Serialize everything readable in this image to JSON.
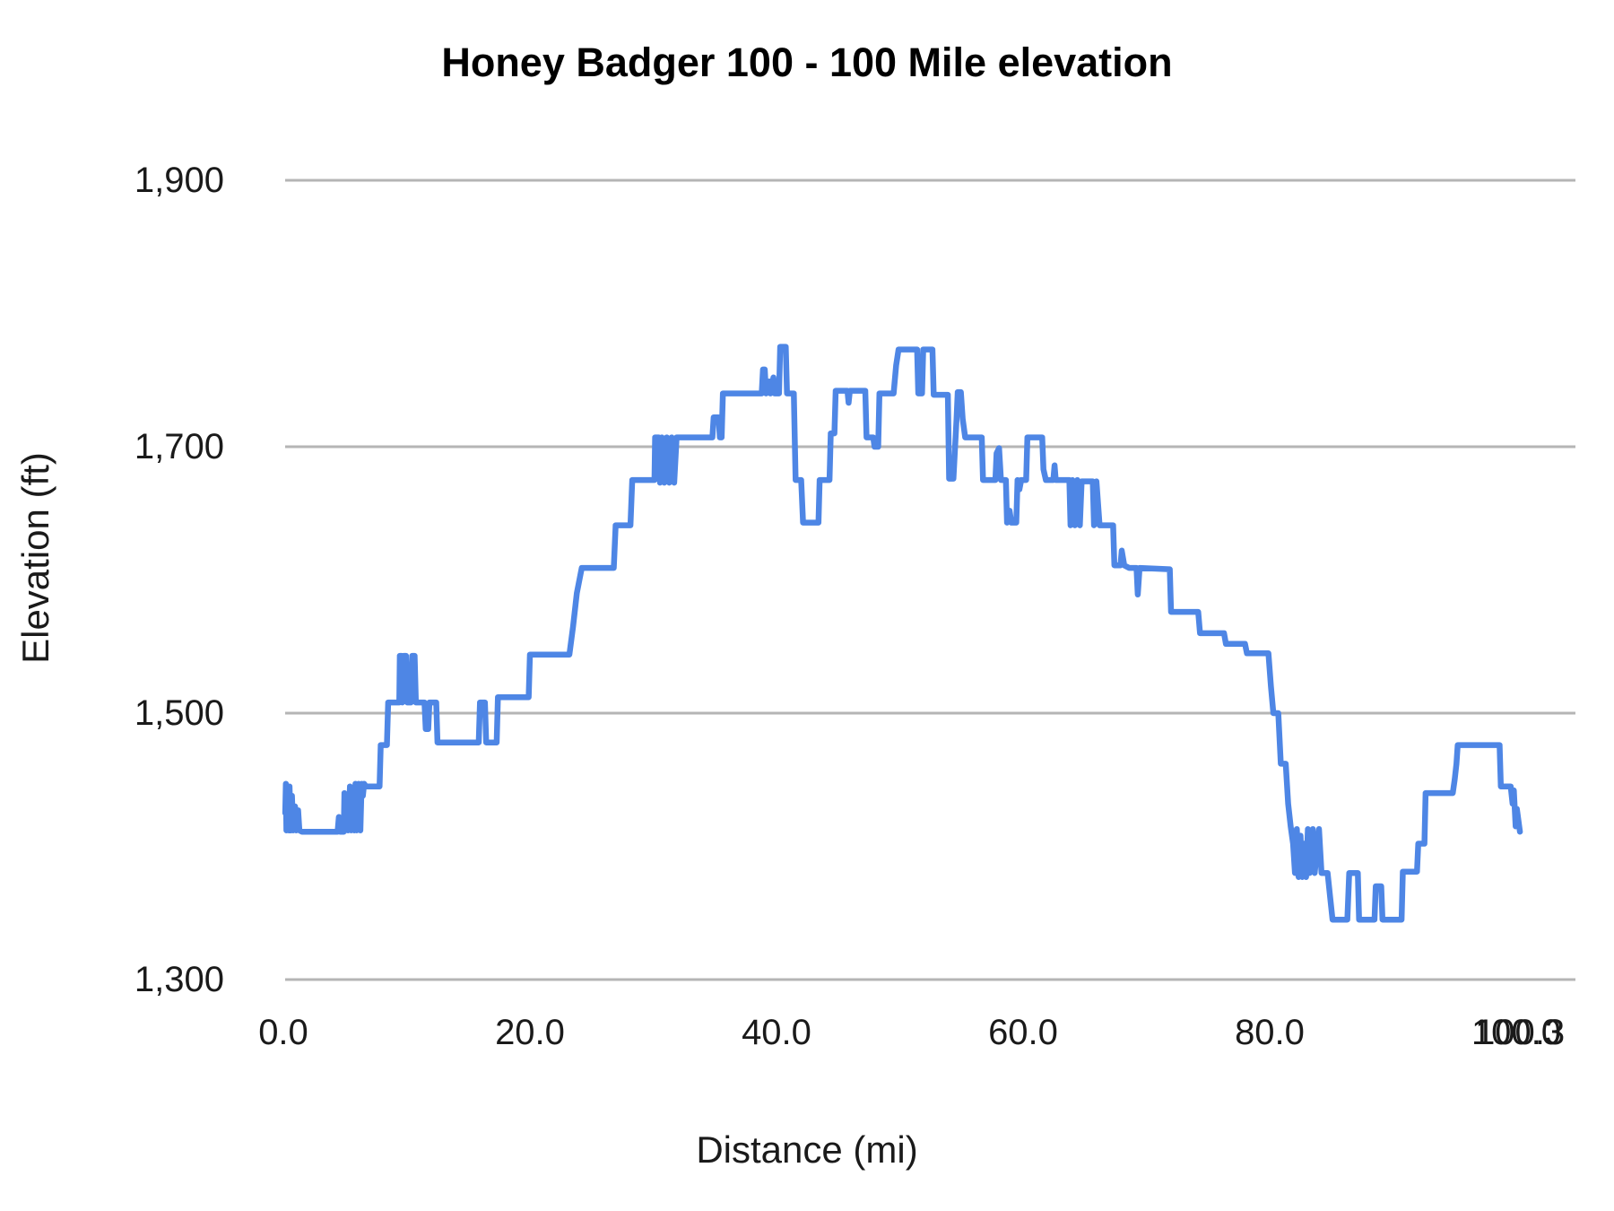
{
  "chart_data": {
    "type": "line",
    "title": "Honey Badger 100 - 100 Mile elevation",
    "xlabel": "Distance (mi)",
    "ylabel": "Elevation (ft)",
    "x_range": [
      0,
      100.3
    ],
    "y_range": [
      1300,
      1900
    ],
    "grid": "horizontal",
    "legend_position": "none",
    "x_ticks": [
      {
        "value": 0,
        "label": "0.0"
      },
      {
        "value": 20,
        "label": "20.0"
      },
      {
        "value": 40,
        "label": "40.0"
      },
      {
        "value": 60,
        "label": "60.0"
      },
      {
        "value": 80,
        "label": "80.0"
      },
      {
        "value": 100,
        "label": "100.0"
      },
      {
        "value": 100.3,
        "label": "100.3"
      }
    ],
    "y_ticks": [
      {
        "value": 1300,
        "label": "1,300"
      },
      {
        "value": 1500,
        "label": "1,500"
      },
      {
        "value": 1700,
        "label": "1,700"
      },
      {
        "value": 1900,
        "label": "1,900"
      }
    ],
    "series": [
      {
        "name": "Elevation",
        "color": "#4e86e5",
        "points": [
          [
            0.15,
            1425
          ],
          [
            0.2,
            1447
          ],
          [
            0.25,
            1412
          ],
          [
            0.35,
            1440
          ],
          [
            0.45,
            1412
          ],
          [
            0.5,
            1445
          ],
          [
            0.6,
            1412
          ],
          [
            0.7,
            1438
          ],
          [
            0.8,
            1412
          ],
          [
            0.95,
            1430
          ],
          [
            1.05,
            1412
          ],
          [
            1.2,
            1427
          ],
          [
            1.3,
            1412
          ],
          [
            1.5,
            1411
          ],
          [
            2.5,
            1411
          ],
          [
            3.5,
            1411
          ],
          [
            4.4,
            1411
          ],
          [
            4.5,
            1422
          ],
          [
            4.6,
            1411
          ],
          [
            4.9,
            1411
          ],
          [
            4.95,
            1440
          ],
          [
            5.05,
            1412
          ],
          [
            5.15,
            1435
          ],
          [
            5.25,
            1412
          ],
          [
            5.4,
            1445
          ],
          [
            5.5,
            1412
          ],
          [
            5.65,
            1440
          ],
          [
            5.75,
            1412
          ],
          [
            5.85,
            1447
          ],
          [
            5.95,
            1412
          ],
          [
            6.1,
            1447
          ],
          [
            6.25,
            1412
          ],
          [
            6.35,
            1447
          ],
          [
            6.45,
            1438
          ],
          [
            6.55,
            1447
          ],
          [
            6.7,
            1445
          ],
          [
            7.8,
            1445
          ],
          [
            7.9,
            1476
          ],
          [
            8.4,
            1476
          ],
          [
            8.5,
            1508
          ],
          [
            9.4,
            1508
          ],
          [
            9.45,
            1543
          ],
          [
            9.6,
            1543
          ],
          [
            9.65,
            1508
          ],
          [
            9.75,
            1543
          ],
          [
            9.95,
            1543
          ],
          [
            10.05,
            1508
          ],
          [
            10.35,
            1508
          ],
          [
            10.45,
            1543
          ],
          [
            10.65,
            1543
          ],
          [
            10.75,
            1508
          ],
          [
            11.45,
            1508
          ],
          [
            11.55,
            1488
          ],
          [
            11.75,
            1488
          ],
          [
            11.85,
            1508
          ],
          [
            12.4,
            1508
          ],
          [
            12.5,
            1478
          ],
          [
            15.85,
            1478
          ],
          [
            15.95,
            1508
          ],
          [
            16.35,
            1508
          ],
          [
            16.45,
            1478
          ],
          [
            17.3,
            1478
          ],
          [
            17.4,
            1512
          ],
          [
            19.9,
            1512
          ],
          [
            20.0,
            1544
          ],
          [
            23.2,
            1544
          ],
          [
            23.5,
            1565
          ],
          [
            23.8,
            1590
          ],
          [
            24.2,
            1609
          ],
          [
            26.8,
            1609
          ],
          [
            26.95,
            1641
          ],
          [
            28.15,
            1641
          ],
          [
            28.3,
            1675
          ],
          [
            30.1,
            1675
          ],
          [
            30.15,
            1707
          ],
          [
            30.45,
            1707
          ],
          [
            30.55,
            1673
          ],
          [
            30.7,
            1707
          ],
          [
            30.9,
            1673
          ],
          [
            31.1,
            1707
          ],
          [
            31.3,
            1673
          ],
          [
            31.5,
            1707
          ],
          [
            31.7,
            1673
          ],
          [
            31.9,
            1707
          ],
          [
            34.8,
            1707
          ],
          [
            34.9,
            1722
          ],
          [
            35.3,
            1722
          ],
          [
            35.4,
            1707
          ],
          [
            35.55,
            1707
          ],
          [
            35.65,
            1740
          ],
          [
            38.8,
            1740
          ],
          [
            38.9,
            1758
          ],
          [
            39.05,
            1758
          ],
          [
            39.15,
            1740
          ],
          [
            39.4,
            1749
          ],
          [
            39.5,
            1740
          ],
          [
            39.75,
            1752
          ],
          [
            39.85,
            1740
          ],
          [
            40.2,
            1740
          ],
          [
            40.3,
            1775
          ],
          [
            40.75,
            1775
          ],
          [
            40.85,
            1740
          ],
          [
            41.4,
            1740
          ],
          [
            41.55,
            1675
          ],
          [
            42.0,
            1675
          ],
          [
            42.15,
            1643
          ],
          [
            43.4,
            1643
          ],
          [
            43.5,
            1675
          ],
          [
            44.3,
            1675
          ],
          [
            44.4,
            1710
          ],
          [
            44.7,
            1710
          ],
          [
            44.8,
            1742
          ],
          [
            45.75,
            1742
          ],
          [
            45.85,
            1733
          ],
          [
            45.95,
            1742
          ],
          [
            47.2,
            1742
          ],
          [
            47.3,
            1707
          ],
          [
            47.85,
            1707
          ],
          [
            47.95,
            1700
          ],
          [
            48.25,
            1700
          ],
          [
            48.35,
            1740
          ],
          [
            49.5,
            1740
          ],
          [
            49.7,
            1761
          ],
          [
            49.9,
            1773
          ],
          [
            51.4,
            1773
          ],
          [
            51.5,
            1740
          ],
          [
            51.8,
            1740
          ],
          [
            51.9,
            1773
          ],
          [
            52.65,
            1773
          ],
          [
            52.75,
            1739
          ],
          [
            53.9,
            1739
          ],
          [
            54.0,
            1676
          ],
          [
            54.35,
            1676
          ],
          [
            54.5,
            1703
          ],
          [
            54.6,
            1721
          ],
          [
            54.7,
            1741
          ],
          [
            54.95,
            1741
          ],
          [
            55.1,
            1721
          ],
          [
            55.3,
            1707
          ],
          [
            56.65,
            1707
          ],
          [
            56.75,
            1675
          ],
          [
            57.75,
            1675
          ],
          [
            57.85,
            1695
          ],
          [
            58.05,
            1699
          ],
          [
            58.2,
            1675
          ],
          [
            58.6,
            1675
          ],
          [
            58.7,
            1643
          ],
          [
            58.9,
            1652
          ],
          [
            59.05,
            1643
          ],
          [
            59.45,
            1643
          ],
          [
            59.55,
            1675
          ],
          [
            59.7,
            1668
          ],
          [
            59.85,
            1675
          ],
          [
            60.25,
            1675
          ],
          [
            60.35,
            1707
          ],
          [
            61.55,
            1707
          ],
          [
            61.65,
            1683
          ],
          [
            61.85,
            1675
          ],
          [
            62.45,
            1675
          ],
          [
            62.55,
            1686
          ],
          [
            62.65,
            1675
          ],
          [
            63.75,
            1675
          ],
          [
            63.85,
            1641
          ],
          [
            64.0,
            1675
          ],
          [
            64.2,
            1641
          ],
          [
            64.4,
            1675
          ],
          [
            64.6,
            1641
          ],
          [
            64.75,
            1674
          ],
          [
            65.65,
            1674
          ],
          [
            65.75,
            1641
          ],
          [
            65.95,
            1674
          ],
          [
            66.2,
            1641
          ],
          [
            66.85,
            1641
          ],
          [
            67.3,
            1641
          ],
          [
            67.4,
            1611
          ],
          [
            67.9,
            1611
          ],
          [
            68.0,
            1622
          ],
          [
            68.2,
            1611
          ],
          [
            68.6,
            1609
          ],
          [
            69.2,
            1609
          ],
          [
            69.3,
            1589
          ],
          [
            69.45,
            1609
          ],
          [
            71.9,
            1608
          ],
          [
            72.0,
            1576
          ],
          [
            74.2,
            1576
          ],
          [
            74.35,
            1560
          ],
          [
            76.3,
            1560
          ],
          [
            76.45,
            1552
          ],
          [
            78.0,
            1552
          ],
          [
            78.15,
            1545
          ],
          [
            79.9,
            1545
          ],
          [
            80.1,
            1520
          ],
          [
            80.3,
            1500
          ],
          [
            80.7,
            1500
          ],
          [
            80.9,
            1462
          ],
          [
            81.3,
            1462
          ],
          [
            81.5,
            1432
          ],
          [
            81.7,
            1415
          ],
          [
            81.9,
            1402
          ],
          [
            82.05,
            1380
          ],
          [
            82.2,
            1413
          ],
          [
            82.35,
            1377
          ],
          [
            82.5,
            1408
          ],
          [
            82.65,
            1377
          ],
          [
            82.8,
            1402
          ],
          [
            82.95,
            1377
          ],
          [
            83.1,
            1413
          ],
          [
            83.25,
            1380
          ],
          [
            83.5,
            1413
          ],
          [
            83.65,
            1380
          ],
          [
            84.0,
            1413
          ],
          [
            84.2,
            1380
          ],
          [
            84.7,
            1380
          ],
          [
            84.9,
            1362
          ],
          [
            85.1,
            1345
          ],
          [
            86.3,
            1345
          ],
          [
            86.45,
            1380
          ],
          [
            87.15,
            1380
          ],
          [
            87.25,
            1345
          ],
          [
            88.5,
            1345
          ],
          [
            88.6,
            1370
          ],
          [
            89.05,
            1370
          ],
          [
            89.15,
            1345
          ],
          [
            90.7,
            1345
          ],
          [
            90.8,
            1381
          ],
          [
            91.95,
            1381
          ],
          [
            92.05,
            1402
          ],
          [
            92.55,
            1402
          ],
          [
            92.65,
            1440
          ],
          [
            94.85,
            1440
          ],
          [
            95.0,
            1450
          ],
          [
            95.15,
            1462
          ],
          [
            95.25,
            1476
          ],
          [
            98.65,
            1476
          ],
          [
            98.75,
            1445
          ],
          [
            99.55,
            1445
          ],
          [
            99.7,
            1432
          ],
          [
            99.8,
            1442
          ],
          [
            99.95,
            1415
          ],
          [
            100.05,
            1428
          ],
          [
            100.3,
            1411
          ]
        ]
      }
    ]
  },
  "colors": {
    "line": "#4e86e5",
    "grid": "#b5b5b5",
    "text": "#1a1a1a",
    "title": "#000000",
    "background": "#ffffff"
  }
}
